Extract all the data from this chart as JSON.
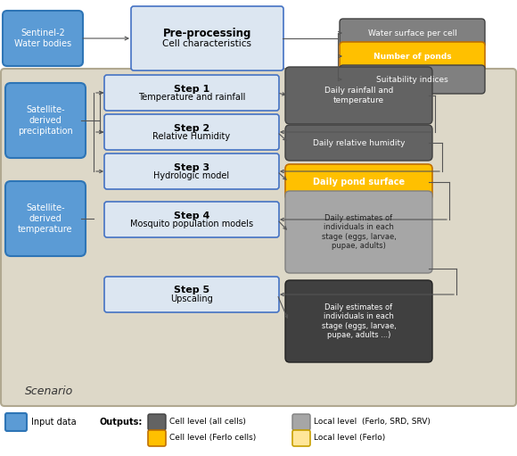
{
  "fig_width": 5.8,
  "fig_height": 5.11,
  "dpi": 100,
  "bg_color": "#ffffff",
  "scenario_bg": "#ddd8c8",
  "scenario_edge": "#b0a890",
  "blue_box_color": "#5b9bd5",
  "blue_box_edge": "#2e75b6",
  "light_box_color": "#dce6f1",
  "light_box_edge": "#4472c4",
  "dark_gray_color": "#636363",
  "dark_gray_edge": "#404040",
  "mid_gray_color": "#808080",
  "mid_gray_edge": "#555555",
  "light_gray_color": "#a6a6a6",
  "light_gray_edge": "#808080",
  "orange_color": "#ffc000",
  "orange_edge": "#c07000",
  "light_orange_color": "#ffe699",
  "light_orange_edge": "#c8a000",
  "darker_gray_color": "#404040",
  "darker_gray_edge": "#222222",
  "arrow_color": "#555555",
  "sentinel_text": "Sentinel-2\nWater bodies",
  "preproc_bold": "Pre-processing",
  "preproc_sub": "Cell characteristics",
  "sat_precip_text": "Satellite-\nderived\nprecipitation",
  "sat_temp_text": "Satellite-\nderived\ntemperature",
  "step1_bold": "Step 1",
  "step1_sub": "Temperature and rainfall",
  "step2_bold": "Step 2",
  "step2_sub": "Relative Humidity",
  "step3_bold": "Step 3",
  "step3_sub": "Hydrologic model",
  "step4_bold": "Step 4",
  "step4_sub": "Mosquito population models",
  "step5_bold": "Step 5",
  "step5_sub": "Upscaling",
  "out_water": "Water surface per cell",
  "out_ponds": "Number of ponds",
  "out_suit": "Suitability indices",
  "out_rainfall": "Daily rainfall and\ntemperature",
  "out_humidity": "Daily relative humidity",
  "out_pond_surf": "Daily pond surface",
  "out_stage1": "Daily estimates of\nindividuals in each\nstage (eggs, larvae,\npupae, adults)",
  "out_stage2": "Daily estimates of\nindividuals in each\nstage (eggs, larvae,\npupae, adults ...)",
  "scenario_label": "Scenario",
  "legend_input": "Input data",
  "legend_outputs": "Outputs:",
  "legend_dark_gray": "Cell level (all cells)",
  "legend_light_gray": "Local level  (Ferlo, SRD, SRV)",
  "legend_orange": "Cell level (Ferlo cells)",
  "legend_light_orange": "Local level (Ferlo)"
}
